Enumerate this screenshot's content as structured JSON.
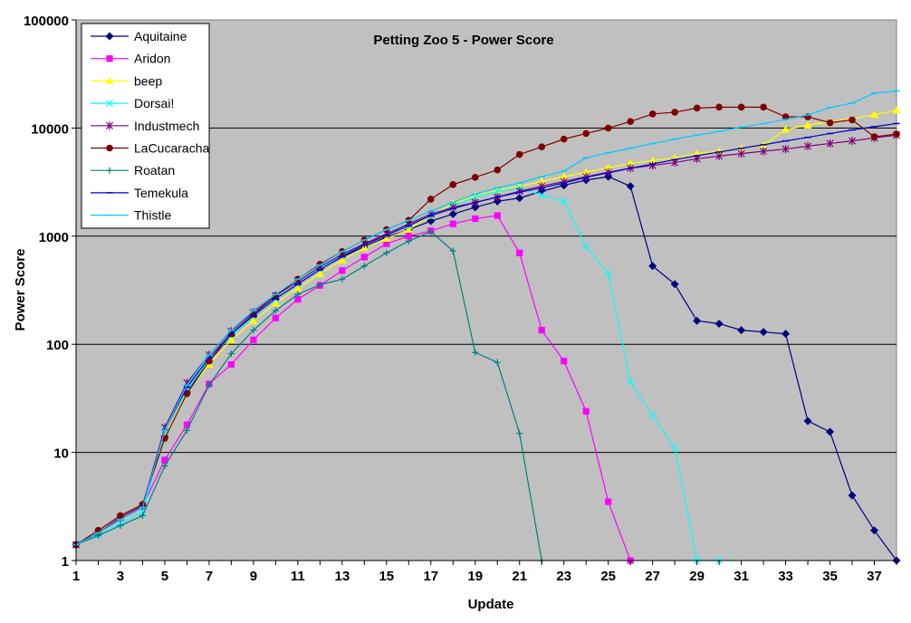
{
  "chart_data": {
    "type": "line",
    "title": "Petting Zoo 5 - Power Score",
    "xlabel": "Update",
    "ylabel": "Power Score",
    "yscale": "log",
    "ylim": [
      1,
      100000
    ],
    "xlim": [
      1,
      38
    ],
    "grid": "horizontal",
    "plot_background": "#c0c0c0",
    "legend_position": "top-left",
    "y_ticks": [
      "1",
      "10",
      "100",
      "1000",
      "10000",
      "100000"
    ],
    "x_ticks": [
      "1",
      "3",
      "5",
      "7",
      "9",
      "11",
      "13",
      "15",
      "17",
      "19",
      "21",
      "23",
      "25",
      "27",
      "29",
      "31",
      "33",
      "35",
      "37"
    ],
    "series": [
      {
        "name": "Aquitaine",
        "color": "#000080",
        "marker": "diamond",
        "x": [
          1,
          2,
          3,
          4,
          5,
          6,
          7,
          8,
          9,
          10,
          11,
          12,
          13,
          14,
          15,
          16,
          17,
          18,
          19,
          20,
          21,
          22,
          23,
          24,
          25,
          26,
          27,
          28,
          29,
          30,
          31,
          32,
          33,
          34,
          35,
          36,
          37,
          38
        ],
        "values": [
          1.4,
          1.8,
          2.5,
          3.2,
          14,
          36,
          70,
          120,
          180,
          260,
          360,
          500,
          640,
          800,
          980,
          1150,
          1380,
          1600,
          1850,
          2100,
          2250,
          2600,
          2950,
          3300,
          3550,
          2900,
          530,
          360,
          165,
          155,
          135,
          130,
          125,
          19.5,
          15.5,
          4,
          1.9,
          1
        ]
      },
      {
        "name": "Aridon",
        "color": "#ff00ff",
        "marker": "square",
        "x": [
          1,
          2,
          3,
          4,
          5,
          6,
          7,
          8,
          9,
          10,
          11,
          12,
          13,
          14,
          15,
          16,
          17,
          18,
          19,
          20,
          21,
          22,
          23,
          24,
          25,
          26
        ],
        "values": [
          1.4,
          1.8,
          2.5,
          3.2,
          8.5,
          18,
          43,
          65,
          110,
          175,
          260,
          350,
          480,
          640,
          850,
          1000,
          1120,
          1300,
          1450,
          1550,
          700,
          135,
          70,
          24,
          3.5,
          1
        ]
      },
      {
        "name": "beep",
        "color": "#ffff00",
        "marker": "triangle",
        "x": [
          1,
          2,
          3,
          4,
          5,
          6,
          7,
          8,
          9,
          10,
          11,
          12,
          13,
          14,
          15,
          16,
          17,
          18,
          19,
          20,
          21,
          22,
          23,
          24,
          25,
          26,
          27,
          28,
          29,
          30,
          31,
          32,
          33,
          34,
          35,
          36,
          37,
          38
        ],
        "values": [
          1.4,
          1.8,
          2.5,
          3.2,
          14,
          36,
          65,
          110,
          165,
          240,
          330,
          450,
          600,
          780,
          950,
          1150,
          1550,
          2000,
          2350,
          2650,
          2900,
          3200,
          3550,
          3900,
          4300,
          4700,
          5000,
          5300,
          5800,
          6100,
          6500,
          6900,
          9700,
          10600,
          11500,
          12200,
          13300,
          14600
        ]
      },
      {
        "name": "Dorsai!",
        "color": "#00ffff",
        "marker": "x",
        "x": [
          1,
          2,
          3,
          4,
          5,
          6,
          7,
          8,
          9,
          10,
          11,
          12,
          13,
          14,
          15,
          16,
          17,
          18,
          19,
          20,
          21,
          22,
          23,
          24,
          25,
          26,
          27,
          28,
          29,
          30
        ],
        "values": [
          1.4,
          1.7,
          2.2,
          2.8,
          16,
          38,
          72,
          120,
          180,
          260,
          360,
          500,
          660,
          850,
          1050,
          1250,
          1550,
          1900,
          2300,
          2600,
          2800,
          2400,
          2100,
          800,
          450,
          45,
          22,
          11,
          1,
          1
        ]
      },
      {
        "name": "Industmech",
        "color": "#800080",
        "marker": "star",
        "x": [
          1,
          2,
          3,
          4,
          5,
          6,
          7,
          8,
          9,
          10,
          11,
          12,
          13,
          14,
          15,
          16,
          17,
          18,
          19,
          20,
          21,
          22,
          23,
          24,
          25,
          26,
          27,
          28,
          29,
          30,
          31,
          32,
          33,
          34,
          35,
          36,
          37,
          38
        ],
        "values": [
          1.4,
          1.8,
          2.5,
          3.2,
          17,
          44,
          80,
          132,
          198,
          282,
          380,
          520,
          680,
          850,
          1050,
          1300,
          1600,
          1850,
          2050,
          2300,
          2600,
          2900,
          3200,
          3550,
          3900,
          4250,
          4500,
          4800,
          5200,
          5500,
          5800,
          6100,
          6400,
          6800,
          7200,
          7600,
          8100,
          8600
        ]
      },
      {
        "name": "LaCucaracha",
        "color": "#800000",
        "marker": "circle",
        "x": [
          1,
          2,
          3,
          4,
          5,
          6,
          7,
          8,
          9,
          10,
          11,
          12,
          13,
          14,
          15,
          16,
          17,
          18,
          19,
          20,
          21,
          22,
          23,
          24,
          25,
          26,
          27,
          28,
          29,
          30,
          31,
          32,
          33,
          34,
          35,
          36,
          37,
          38
        ],
        "values": [
          1.4,
          1.9,
          2.6,
          3.3,
          13.5,
          35,
          70,
          125,
          190,
          280,
          400,
          550,
          720,
          920,
          1150,
          1400,
          2200,
          3000,
          3500,
          4100,
          5700,
          6700,
          7900,
          8900,
          10000,
          11500,
          13500,
          14000,
          15300,
          15600,
          15600,
          15600,
          12700,
          12700,
          11200,
          11900,
          8300,
          8800
        ]
      },
      {
        "name": "Roatan",
        "color": "#008080",
        "marker": "plus",
        "x": [
          1,
          2,
          3,
          4,
          5,
          6,
          7,
          8,
          9,
          10,
          11,
          12,
          13,
          14,
          15,
          16,
          17,
          18,
          19,
          20,
          21,
          22
        ],
        "values": [
          1.4,
          1.7,
          2.1,
          2.6,
          7.5,
          16,
          42,
          82,
          135,
          205,
          290,
          355,
          400,
          530,
          700,
          900,
          1100,
          730,
          84,
          68,
          15,
          1
        ]
      },
      {
        "name": "Temekula",
        "color": "#0000cc",
        "marker": "dash",
        "x": [
          1,
          2,
          3,
          4,
          5,
          6,
          7,
          8,
          9,
          10,
          11,
          12,
          13,
          14,
          15,
          16,
          17,
          18,
          19,
          20,
          21,
          22,
          23,
          24,
          25,
          26,
          27,
          28,
          29,
          30,
          31,
          32,
          33,
          34,
          35,
          36,
          37,
          38
        ],
        "values": [
          1.4,
          1.8,
          2.4,
          3.1,
          16,
          40,
          75,
          125,
          185,
          265,
          360,
          490,
          650,
          830,
          1020,
          1250,
          1550,
          1800,
          2050,
          2300,
          2550,
          2800,
          3100,
          3500,
          3850,
          4250,
          4650,
          5100,
          5550,
          6000,
          6500,
          7000,
          7600,
          8200,
          8900,
          9600,
          10300,
          11000
        ]
      },
      {
        "name": "Thistle",
        "color": "#00ccff",
        "marker": "dash",
        "x": [
          1,
          2,
          3,
          4,
          5,
          6,
          7,
          8,
          9,
          10,
          11,
          12,
          13,
          14,
          15,
          16,
          17,
          18,
          19,
          20,
          21,
          22,
          23,
          24,
          25,
          26,
          27,
          28,
          29,
          30,
          31,
          32,
          33,
          34,
          35,
          36,
          37,
          38
        ],
        "values": [
          1.4,
          1.8,
          2.4,
          3.1,
          16,
          42,
          80,
          135,
          205,
          290,
          400,
          540,
          720,
          920,
          1150,
          1400,
          1700,
          2050,
          2450,
          2800,
          3100,
          3550,
          4000,
          5300,
          5900,
          6500,
          7200,
          7900,
          8600,
          9300,
          10200,
          11000,
          12000,
          13200,
          15500,
          17000,
          21000,
          22000
        ]
      }
    ]
  }
}
